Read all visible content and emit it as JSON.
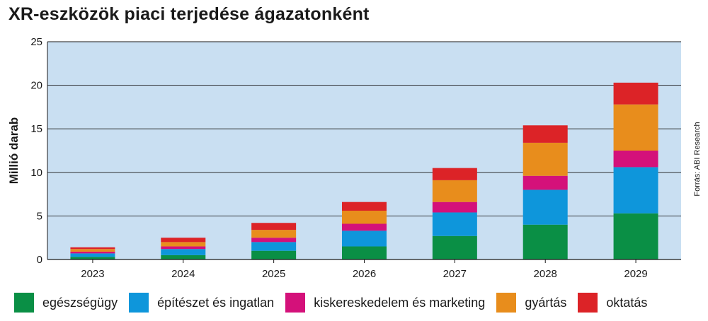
{
  "chart_data": {
    "type": "bar",
    "stacked": true,
    "title": "XR-eszközök piaci terjedése ágazatonként",
    "ylabel": "Millió darab",
    "xlabel": "",
    "source": "Forrás: ABI Research",
    "categories": [
      "2023",
      "2024",
      "2025",
      "2026",
      "2027",
      "2028",
      "2029"
    ],
    "ylim": [
      0,
      25
    ],
    "yticks": [
      0,
      5,
      10,
      15,
      20,
      25
    ],
    "grid": true,
    "legend_position": "bottom",
    "plot_background": "#c9dff2",
    "series": [
      {
        "name": "egészségügy",
        "color": "#0a8f45",
        "values": [
          0.3,
          0.5,
          1.0,
          1.5,
          2.7,
          4.0,
          5.3
        ]
      },
      {
        "name": "építészet és ingatlan",
        "color": "#0e96db",
        "values": [
          0.4,
          0.7,
          1.0,
          1.8,
          2.7,
          4.0,
          5.3
        ]
      },
      {
        "name": "kiskereskedelem és marketing",
        "color": "#d4117a",
        "values": [
          0.2,
          0.3,
          0.5,
          0.8,
          1.2,
          1.6,
          1.9
        ]
      },
      {
        "name": "gyártás",
        "color": "#e88d1c",
        "values": [
          0.3,
          0.5,
          0.9,
          1.5,
          2.5,
          3.8,
          5.3
        ]
      },
      {
        "name": "oktatás",
        "color": "#dc2327",
        "values": [
          0.2,
          0.5,
          0.8,
          1.0,
          1.4,
          2.0,
          2.5
        ]
      }
    ]
  }
}
